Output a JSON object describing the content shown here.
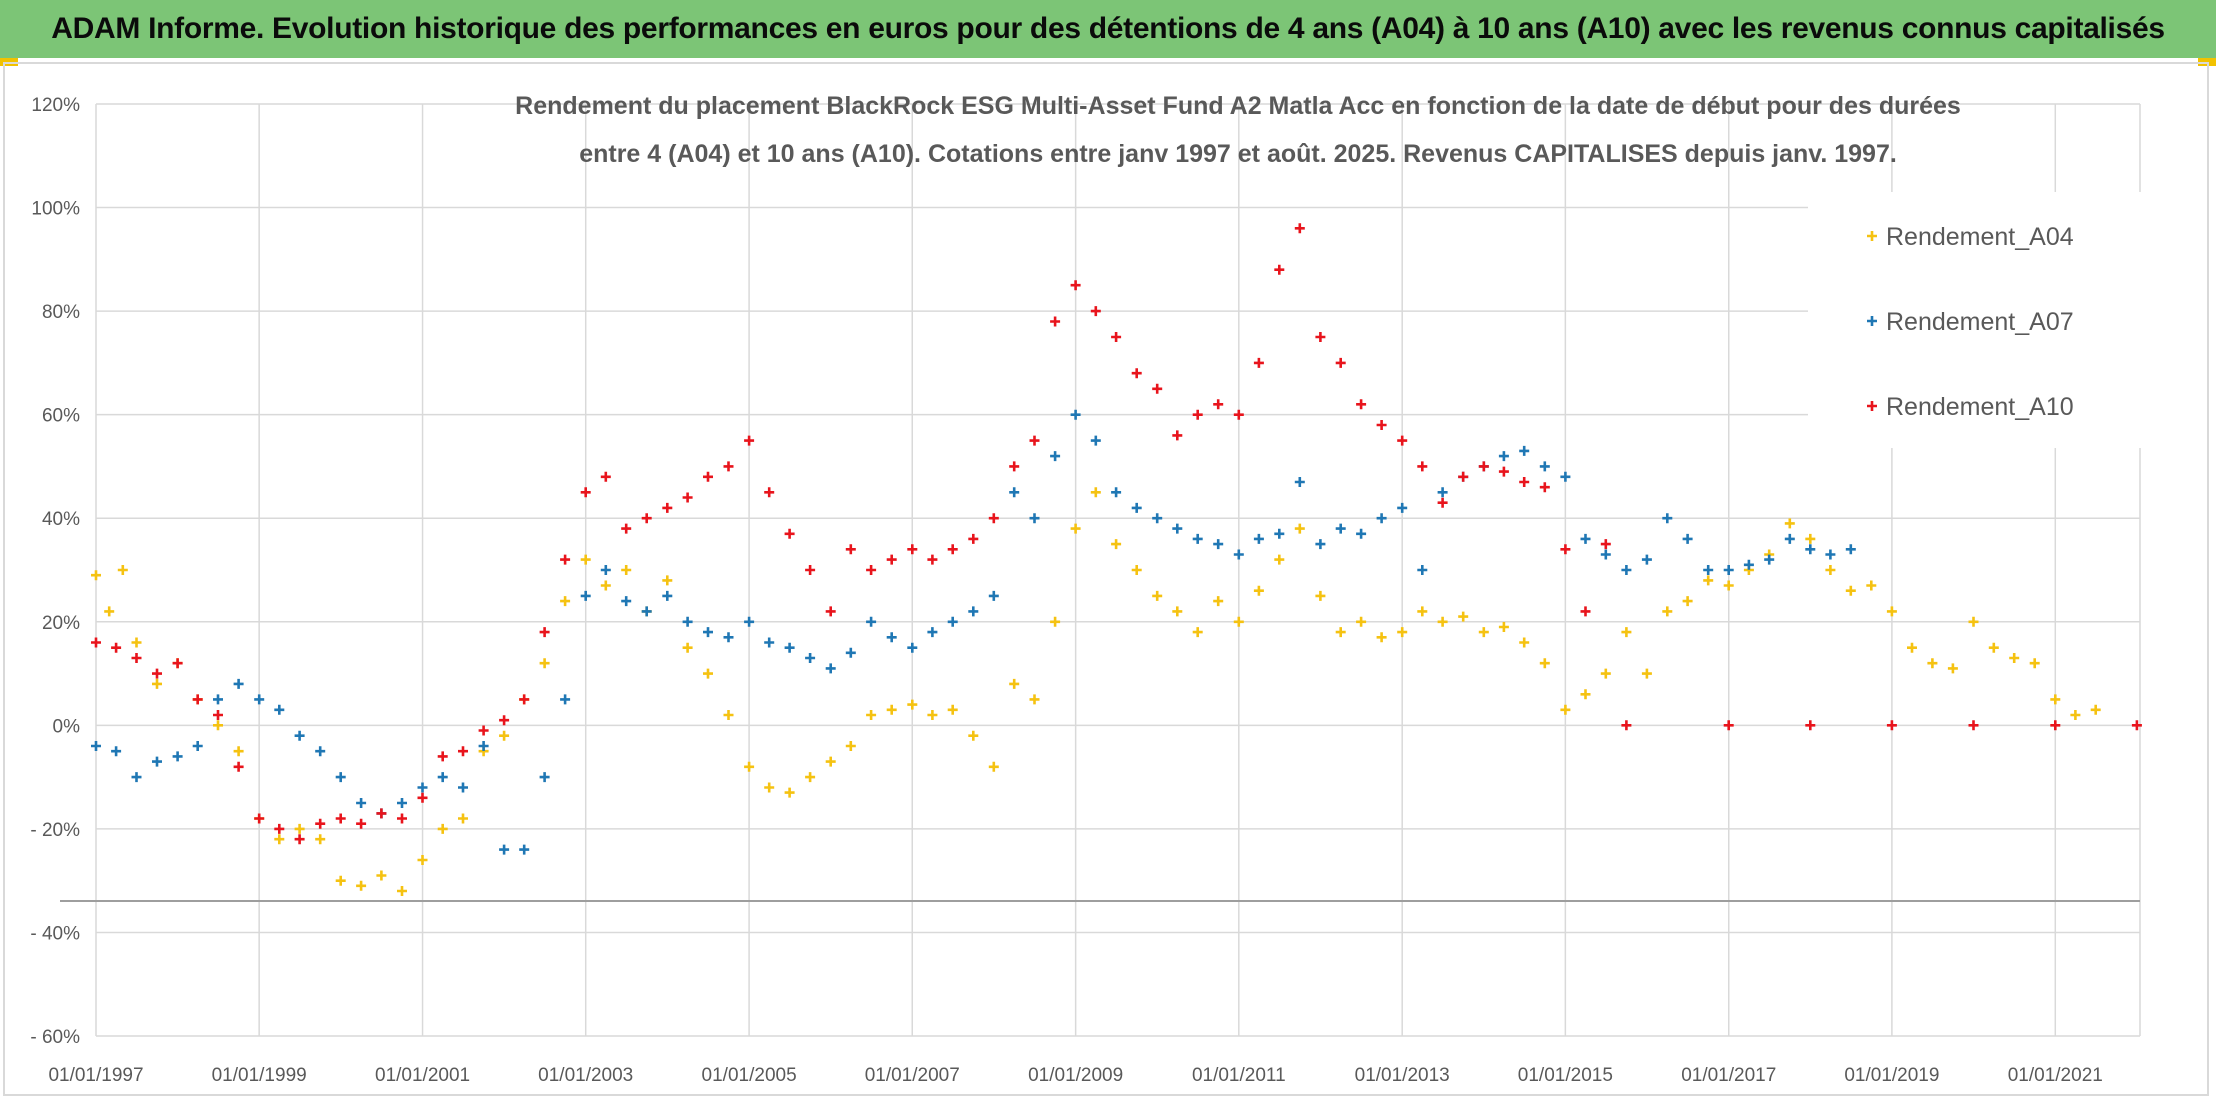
{
  "header": {
    "banner_title": "ADAM Informe. Evolution historique des performances en euros pour des détentions de 4 ans (A04) à 10 ans (A10) avec les revenus connus capitalisés",
    "banner_color": "#7cc576"
  },
  "chart_data": {
    "type": "scatter",
    "title_line1": "Rendement du placement BlackRock ESG Multi-Asset Fund A2 Matla Acc en fonction de la date de début pour des durées",
    "title_line2": "entre 4 (A04) et 10 ans (A10). Cotations entre janv 1997 et août. 2025. Revenus CAPITALISES depuis janv. 1997.",
    "xlim": [
      "1997-01-01",
      "2022-01-15"
    ],
    "ylim": [
      -0.6,
      1.2
    ],
    "grid": true,
    "legend_position": "top-right",
    "marker": "+",
    "x_tick_labels": [
      "01/01/1997",
      "01/01/1999",
      "01/01/2001",
      "01/01/2003",
      "01/01/2005",
      "01/01/2007",
      "01/01/2009",
      "01/01/2011",
      "01/01/2013",
      "01/01/2015",
      "01/01/2017",
      "01/01/2019",
      "01/01/2021"
    ],
    "y_ticks": [
      {
        "value": 1.2,
        "label": "120%"
      },
      {
        "value": 1.0,
        "label": "100%"
      },
      {
        "value": 0.8,
        "label": "80%"
      },
      {
        "value": 0.6,
        "label": "60%"
      },
      {
        "value": 0.4,
        "label": "40%"
      },
      {
        "value": 0.2,
        "label": "20%"
      },
      {
        "value": 0.0,
        "label": "0%"
      },
      {
        "value": -0.2,
        "label": "- 20%"
      },
      {
        "value": -0.4,
        "label": "- 40%"
      },
      {
        "value": -0.6,
        "label": "- 60%"
      }
    ],
    "series": [
      {
        "name": "Rendement_A04",
        "color": "#f5c211",
        "points": [
          [
            "1997-01",
            0.29
          ],
          [
            "1997-03",
            0.22
          ],
          [
            "1997-05",
            0.3
          ],
          [
            "1997-07",
            0.16
          ],
          [
            "1997-10",
            0.08
          ],
          [
            "1998-01",
            0.12
          ],
          [
            "1998-04",
            0.05
          ],
          [
            "1998-07",
            0.0
          ],
          [
            "1998-10",
            -0.05
          ],
          [
            "1999-01",
            -0.18
          ],
          [
            "1999-04",
            -0.22
          ],
          [
            "1999-07",
            -0.2
          ],
          [
            "1999-10",
            -0.22
          ],
          [
            "2000-01",
            -0.3
          ],
          [
            "2000-04",
            -0.31
          ],
          [
            "2000-07",
            -0.29
          ],
          [
            "2000-10",
            -0.32
          ],
          [
            "2001-01",
            -0.26
          ],
          [
            "2001-04",
            -0.2
          ],
          [
            "2001-07",
            -0.18
          ],
          [
            "2001-10",
            -0.05
          ],
          [
            "2002-01",
            -0.02
          ],
          [
            "2002-04",
            0.05
          ],
          [
            "2002-07",
            0.12
          ],
          [
            "2002-10",
            0.24
          ],
          [
            "2003-01",
            0.32
          ],
          [
            "2003-04",
            0.27
          ],
          [
            "2003-07",
            0.3
          ],
          [
            "2003-10",
            0.22
          ],
          [
            "2004-01",
            0.28
          ],
          [
            "2004-04",
            0.15
          ],
          [
            "2004-07",
            0.1
          ],
          [
            "2004-10",
            0.02
          ],
          [
            "2005-01",
            -0.08
          ],
          [
            "2005-04",
            -0.12
          ],
          [
            "2005-07",
            -0.13
          ],
          [
            "2005-10",
            -0.1
          ],
          [
            "2006-01",
            -0.07
          ],
          [
            "2006-04",
            -0.04
          ],
          [
            "2006-07",
            0.02
          ],
          [
            "2006-10",
            0.03
          ],
          [
            "2007-01",
            0.04
          ],
          [
            "2007-04",
            0.02
          ],
          [
            "2007-07",
            0.03
          ],
          [
            "2007-10",
            -0.02
          ],
          [
            "2008-01",
            -0.08
          ],
          [
            "2008-04",
            0.08
          ],
          [
            "2008-07",
            0.05
          ],
          [
            "2008-10",
            0.2
          ],
          [
            "2009-01",
            0.38
          ],
          [
            "2009-04",
            0.45
          ],
          [
            "2009-07",
            0.35
          ],
          [
            "2009-10",
            0.3
          ],
          [
            "2010-01",
            0.25
          ],
          [
            "2010-04",
            0.22
          ],
          [
            "2010-07",
            0.18
          ],
          [
            "2010-10",
            0.24
          ],
          [
            "2011-01",
            0.2
          ],
          [
            "2011-04",
            0.26
          ],
          [
            "2011-07",
            0.32
          ],
          [
            "2011-10",
            0.38
          ],
          [
            "2012-01",
            0.25
          ],
          [
            "2012-04",
            0.18
          ],
          [
            "2012-07",
            0.2
          ],
          [
            "2012-10",
            0.17
          ],
          [
            "2013-01",
            0.18
          ],
          [
            "2013-04",
            0.22
          ],
          [
            "2013-07",
            0.2
          ],
          [
            "2013-10",
            0.21
          ],
          [
            "2014-01",
            0.18
          ],
          [
            "2014-04",
            0.19
          ],
          [
            "2014-07",
            0.16
          ],
          [
            "2014-10",
            0.12
          ],
          [
            "2015-01",
            0.03
          ],
          [
            "2015-04",
            0.06
          ],
          [
            "2015-07",
            0.1
          ],
          [
            "2015-10",
            0.18
          ],
          [
            "2016-01",
            0.1
          ],
          [
            "2016-04",
            0.22
          ],
          [
            "2016-07",
            0.24
          ],
          [
            "2016-10",
            0.28
          ],
          [
            "2017-01",
            0.27
          ],
          [
            "2017-04",
            0.3
          ],
          [
            "2017-07",
            0.33
          ],
          [
            "2017-10",
            0.39
          ],
          [
            "2018-01",
            0.36
          ],
          [
            "2018-04",
            0.3
          ],
          [
            "2018-07",
            0.26
          ],
          [
            "2018-10",
            0.27
          ],
          [
            "2019-01",
            0.22
          ],
          [
            "2019-04",
            0.15
          ],
          [
            "2019-07",
            0.12
          ],
          [
            "2019-10",
            0.11
          ],
          [
            "2020-01",
            0.2
          ],
          [
            "2020-04",
            0.15
          ],
          [
            "2020-07",
            0.13
          ],
          [
            "2020-10",
            0.12
          ],
          [
            "2021-01",
            0.05
          ],
          [
            "2021-04",
            0.02
          ],
          [
            "2021-07",
            0.03
          ]
        ]
      },
      {
        "name": "Rendement_A07",
        "color": "#1f77b4",
        "points": [
          [
            "1997-01",
            -0.04
          ],
          [
            "1997-04",
            -0.05
          ],
          [
            "1997-07",
            -0.1
          ],
          [
            "1997-10",
            -0.07
          ],
          [
            "1998-01",
            -0.06
          ],
          [
            "1998-04",
            -0.04
          ],
          [
            "1998-07",
            0.05
          ],
          [
            "1998-10",
            0.08
          ],
          [
            "1999-01",
            0.05
          ],
          [
            "1999-04",
            0.03
          ],
          [
            "1999-07",
            -0.02
          ],
          [
            "1999-10",
            -0.05
          ],
          [
            "2000-01",
            -0.1
          ],
          [
            "2000-04",
            -0.15
          ],
          [
            "2000-07",
            -0.17
          ],
          [
            "2000-10",
            -0.15
          ],
          [
            "2001-01",
            -0.12
          ],
          [
            "2001-04",
            -0.1
          ],
          [
            "2001-07",
            -0.12
          ],
          [
            "2001-10",
            -0.04
          ],
          [
            "2002-01",
            -0.24
          ],
          [
            "2002-04",
            -0.24
          ],
          [
            "2002-07",
            -0.1
          ],
          [
            "2002-10",
            0.05
          ],
          [
            "2003-01",
            0.25
          ],
          [
            "2003-04",
            0.3
          ],
          [
            "2003-07",
            0.24
          ],
          [
            "2003-10",
            0.22
          ],
          [
            "2004-01",
            0.25
          ],
          [
            "2004-04",
            0.2
          ],
          [
            "2004-07",
            0.18
          ],
          [
            "2004-10",
            0.17
          ],
          [
            "2005-01",
            0.2
          ],
          [
            "2005-04",
            0.16
          ],
          [
            "2005-07",
            0.15
          ],
          [
            "2005-10",
            0.13
          ],
          [
            "2006-01",
            0.11
          ],
          [
            "2006-04",
            0.14
          ],
          [
            "2006-07",
            0.2
          ],
          [
            "2006-10",
            0.17
          ],
          [
            "2007-01",
            0.15
          ],
          [
            "2007-04",
            0.18
          ],
          [
            "2007-07",
            0.2
          ],
          [
            "2007-10",
            0.22
          ],
          [
            "2008-01",
            0.25
          ],
          [
            "2008-04",
            0.45
          ],
          [
            "2008-07",
            0.4
          ],
          [
            "2008-10",
            0.52
          ],
          [
            "2009-01",
            0.6
          ],
          [
            "2009-04",
            0.55
          ],
          [
            "2009-07",
            0.45
          ],
          [
            "2009-10",
            0.42
          ],
          [
            "2010-01",
            0.4
          ],
          [
            "2010-04",
            0.38
          ],
          [
            "2010-07",
            0.36
          ],
          [
            "2010-10",
            0.35
          ],
          [
            "2011-01",
            0.33
          ],
          [
            "2011-04",
            0.36
          ],
          [
            "2011-07",
            0.37
          ],
          [
            "2011-10",
            0.47
          ],
          [
            "2012-01",
            0.35
          ],
          [
            "2012-04",
            0.38
          ],
          [
            "2012-07",
            0.37
          ],
          [
            "2012-10",
            0.4
          ],
          [
            "2013-01",
            0.42
          ],
          [
            "2013-04",
            0.3
          ],
          [
            "2013-07",
            0.45
          ],
          [
            "2013-10",
            0.48
          ],
          [
            "2014-01",
            0.5
          ],
          [
            "2014-04",
            0.52
          ],
          [
            "2014-07",
            0.53
          ],
          [
            "2014-10",
            0.5
          ],
          [
            "2015-01",
            0.48
          ],
          [
            "2015-04",
            0.36
          ],
          [
            "2015-07",
            0.33
          ],
          [
            "2015-10",
            0.3
          ],
          [
            "2016-01",
            0.32
          ],
          [
            "2016-04",
            0.4
          ],
          [
            "2016-07",
            0.36
          ],
          [
            "2016-10",
            0.3
          ],
          [
            "2017-01",
            0.3
          ],
          [
            "2017-04",
            0.31
          ],
          [
            "2017-07",
            0.32
          ],
          [
            "2017-10",
            0.36
          ],
          [
            "2018-01",
            0.34
          ],
          [
            "2018-04",
            0.33
          ],
          [
            "2018-07",
            0.34
          ]
        ]
      },
      {
        "name": "Rendement_A10",
        "color": "#e8141c",
        "points": [
          [
            "1997-01",
            0.16
          ],
          [
            "1997-04",
            0.15
          ],
          [
            "1997-07",
            0.13
          ],
          [
            "1997-10",
            0.1
          ],
          [
            "1998-01",
            0.12
          ],
          [
            "1998-04",
            0.05
          ],
          [
            "1998-07",
            0.02
          ],
          [
            "1998-10",
            -0.08
          ],
          [
            "1999-01",
            -0.18
          ],
          [
            "1999-04",
            -0.2
          ],
          [
            "1999-07",
            -0.22
          ],
          [
            "1999-10",
            -0.19
          ],
          [
            "2000-01",
            -0.18
          ],
          [
            "2000-04",
            -0.19
          ],
          [
            "2000-07",
            -0.17
          ],
          [
            "2000-10",
            -0.18
          ],
          [
            "2001-01",
            -0.14
          ],
          [
            "2001-04",
            -0.06
          ],
          [
            "2001-07",
            -0.05
          ],
          [
            "2001-10",
            -0.01
          ],
          [
            "2002-01",
            0.01
          ],
          [
            "2002-04",
            0.05
          ],
          [
            "2002-07",
            0.18
          ],
          [
            "2002-10",
            0.32
          ],
          [
            "2003-01",
            0.45
          ],
          [
            "2003-04",
            0.48
          ],
          [
            "2003-07",
            0.38
          ],
          [
            "2003-10",
            0.4
          ],
          [
            "2004-01",
            0.42
          ],
          [
            "2004-04",
            0.44
          ],
          [
            "2004-07",
            0.48
          ],
          [
            "2004-10",
            0.5
          ],
          [
            "2005-01",
            0.55
          ],
          [
            "2005-04",
            0.45
          ],
          [
            "2005-07",
            0.37
          ],
          [
            "2005-10",
            0.3
          ],
          [
            "2006-01",
            0.22
          ],
          [
            "2006-04",
            0.34
          ],
          [
            "2006-07",
            0.3
          ],
          [
            "2006-10",
            0.32
          ],
          [
            "2007-01",
            0.34
          ],
          [
            "2007-04",
            0.32
          ],
          [
            "2007-07",
            0.34
          ],
          [
            "2007-10",
            0.36
          ],
          [
            "2008-01",
            0.4
          ],
          [
            "2008-04",
            0.5
          ],
          [
            "2008-07",
            0.55
          ],
          [
            "2008-10",
            0.78
          ],
          [
            "2009-01",
            0.85
          ],
          [
            "2009-04",
            0.8
          ],
          [
            "2009-07",
            0.75
          ],
          [
            "2009-10",
            0.68
          ],
          [
            "2010-01",
            0.65
          ],
          [
            "2010-04",
            0.56
          ],
          [
            "2010-07",
            0.6
          ],
          [
            "2010-10",
            0.62
          ],
          [
            "2011-01",
            0.6
          ],
          [
            "2011-04",
            0.7
          ],
          [
            "2011-07",
            0.88
          ],
          [
            "2011-10",
            0.96
          ],
          [
            "2012-01",
            0.75
          ],
          [
            "2012-04",
            0.7
          ],
          [
            "2012-07",
            0.62
          ],
          [
            "2012-10",
            0.58
          ],
          [
            "2013-01",
            0.55
          ],
          [
            "2013-04",
            0.5
          ],
          [
            "2013-07",
            0.43
          ],
          [
            "2013-10",
            0.48
          ],
          [
            "2014-01",
            0.5
          ],
          [
            "2014-04",
            0.49
          ],
          [
            "2014-07",
            0.47
          ],
          [
            "2014-10",
            0.46
          ],
          [
            "2015-01",
            0.34
          ],
          [
            "2015-04",
            0.22
          ],
          [
            "2015-07",
            0.35
          ],
          [
            "2015-10",
            0.0
          ],
          [
            "2017-01",
            0.0
          ],
          [
            "2018-01",
            0.0
          ],
          [
            "2019-01",
            0.0
          ],
          [
            "2020-01",
            0.0
          ],
          [
            "2021-01",
            0.0
          ],
          [
            "2022-01",
            0.0
          ]
        ]
      }
    ]
  }
}
